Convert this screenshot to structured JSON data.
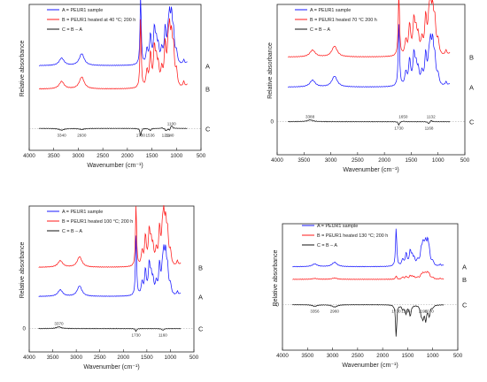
{
  "colors": {
    "sample": "#1a1aff",
    "heated": "#ff1a1a",
    "difference": "#111111"
  },
  "figure": {
    "xlabel": "Wavenumber (cm⁻¹)",
    "ylabel": "Relative absorbance",
    "zero_label": "0"
  },
  "chart_data": [
    {
      "type": "line",
      "xlim": [
        4000,
        500
      ],
      "xticks": [
        4000,
        3500,
        3000,
        2500,
        2000,
        1500,
        1000,
        500
      ],
      "legend": [
        "A = PEUR1 sample",
        "B = PEUR1 heated at 40 °C; 200 h",
        "C = B – A"
      ],
      "trace_labels": [
        "B",
        "A",
        "C"
      ],
      "zero_label": false,
      "series": [
        {
          "name": "A = PEUR1 sample",
          "label": "A",
          "baseline": 0.42,
          "scale": 0.82,
          "x": [
            3340,
            2930,
            1730,
            1600,
            1530,
            1450,
            1410,
            1370,
            1300,
            1230,
            1170,
            1140,
            1100,
            1060,
            1000,
            850,
            780
          ],
          "y": [
            0.1,
            0.16,
            0.95,
            0.2,
            0.38,
            0.45,
            0.25,
            0.2,
            0.18,
            0.45,
            0.3,
            0.5,
            0.55,
            0.35,
            0.15,
            0.06,
            0.04
          ]
        },
        {
          "name": "B = PEUR1 heated at 40 °C; 200 h",
          "label": "B",
          "baseline": 0.58,
          "scale": 0.82,
          "x": [
            3340,
            2930,
            1730,
            1600,
            1530,
            1450,
            1410,
            1370,
            1300,
            1230,
            1170,
            1140,
            1100,
            1060,
            1000,
            850,
            780
          ],
          "y": [
            0.1,
            0.16,
            0.95,
            0.22,
            0.45,
            0.5,
            0.3,
            0.24,
            0.22,
            0.55,
            0.42,
            0.6,
            0.55,
            0.45,
            0.2,
            0.08,
            0.05
          ]
        },
        {
          "name": "C = B – A",
          "label": "C",
          "baseline": 0.85,
          "scale": 0.82,
          "x": [
            3340,
            2930,
            1730,
            1536,
            1300,
            1211,
            1140,
            1100
          ],
          "y": [
            -0.025,
            -0.015,
            -0.12,
            -0.03,
            0.01,
            -0.035,
            -0.03,
            0.05
          ]
        }
      ],
      "annotations": [
        {
          "label": "3340",
          "x": 3340,
          "below": true
        },
        {
          "label": "2930",
          "x": 2930,
          "below": true
        },
        {
          "label": "1730",
          "x": 1730,
          "below": true
        },
        {
          "label": "1536",
          "x": 1536,
          "below": true
        },
        {
          "label": "1211",
          "x": 1211,
          "below": true
        },
        {
          "label": "1140",
          "x": 1140,
          "below": true
        },
        {
          "label": "1100",
          "x": 1100,
          "below": false
        }
      ]
    },
    {
      "type": "line",
      "xlim": [
        4000,
        500
      ],
      "xticks": [
        4000,
        3500,
        3000,
        2500,
        2000,
        1500,
        1000,
        500
      ],
      "legend": [
        "A = PEUR1 sample",
        "B = PEUR1 heated 70 °C 200 h",
        "C = B – A"
      ],
      "trace_labels": [
        "B",
        "A",
        "C"
      ],
      "zero_label": true,
      "series": [
        {
          "name": "A = PEUR1 sample",
          "label": "A",
          "baseline": 0.55,
          "scale": 0.72,
          "x": [
            3340,
            2930,
            1730,
            1600,
            1530,
            1450,
            1410,
            1370,
            1300,
            1230,
            1170,
            1140,
            1100,
            1060,
            1000,
            850,
            780
          ],
          "y": [
            0.1,
            0.16,
            0.95,
            0.2,
            0.38,
            0.45,
            0.25,
            0.2,
            0.18,
            0.45,
            0.3,
            0.5,
            0.55,
            0.35,
            0.15,
            0.06,
            0.04
          ]
        },
        {
          "name": "B = PEUR1 heated 70 °C 200 h",
          "label": "B",
          "baseline": 0.35,
          "scale": 0.72,
          "x": [
            3340,
            2930,
            1730,
            1600,
            1530,
            1450,
            1410,
            1370,
            1300,
            1230,
            1170,
            1140,
            1100,
            1060,
            1000,
            850,
            780
          ],
          "y": [
            0.1,
            0.16,
            0.95,
            0.22,
            0.45,
            0.5,
            0.3,
            0.24,
            0.22,
            0.55,
            0.42,
            0.6,
            0.55,
            0.45,
            0.2,
            0.08,
            0.05
          ]
        },
        {
          "name": "C = B – A",
          "label": "C",
          "baseline": 0.78,
          "scale": 0.72,
          "x": [
            3388,
            2930,
            1730,
            1650,
            1168,
            1132
          ],
          "y": [
            0.03,
            0.0,
            -0.06,
            0.01,
            -0.04,
            0.03
          ]
        }
      ],
      "annotations": [
        {
          "label": "3388",
          "x": 3388,
          "below": false
        },
        {
          "label": "1730",
          "x": 1730,
          "below": true
        },
        {
          "label": "1650",
          "x": 1650,
          "below": false
        },
        {
          "label": "1168",
          "x": 1168,
          "below": true
        },
        {
          "label": "1132",
          "x": 1132,
          "below": false
        }
      ]
    },
    {
      "type": "line",
      "xlim": [
        4000,
        500
      ],
      "xticks": [
        4000,
        3500,
        3000,
        2500,
        2000,
        1500,
        1000,
        500
      ],
      "legend": [
        "A = PEUR1 sample",
        "B = PEUR1 heated 100 °C; 200 h",
        "C = B – A"
      ],
      "trace_labels": [
        "B",
        "A",
        "C"
      ],
      "zero_label": true,
      "series": [
        {
          "name": "A = PEUR1 sample",
          "label": "A",
          "baseline": 0.62,
          "scale": 0.72,
          "x": [
            3340,
            2930,
            1730,
            1600,
            1530,
            1450,
            1410,
            1370,
            1300,
            1230,
            1170,
            1140,
            1100,
            1060,
            1000,
            850,
            780
          ],
          "y": [
            0.1,
            0.16,
            0.95,
            0.2,
            0.38,
            0.45,
            0.25,
            0.2,
            0.18,
            0.45,
            0.3,
            0.5,
            0.55,
            0.35,
            0.15,
            0.06,
            0.04
          ]
        },
        {
          "name": "B = PEUR1 heated 100 °C; 200 h",
          "label": "B",
          "baseline": 0.42,
          "scale": 0.72,
          "x": [
            3340,
            2930,
            1730,
            1600,
            1530,
            1450,
            1410,
            1370,
            1300,
            1230,
            1170,
            1140,
            1100,
            1060,
            1000,
            850,
            780
          ],
          "y": [
            0.1,
            0.16,
            0.95,
            0.22,
            0.45,
            0.5,
            0.3,
            0.24,
            0.22,
            0.55,
            0.42,
            0.6,
            0.55,
            0.45,
            0.2,
            0.08,
            0.05
          ]
        },
        {
          "name": "C = B – A",
          "label": "C",
          "baseline": 0.84,
          "scale": 0.72,
          "x": [
            3370,
            2930,
            1730,
            1160
          ],
          "y": [
            0.03,
            0.0,
            -0.05,
            -0.03
          ]
        }
      ],
      "annotations": [
        {
          "label": "3370",
          "x": 3370,
          "below": false
        },
        {
          "label": "1730",
          "x": 1730,
          "below": true
        },
        {
          "label": "1160",
          "x": 1160,
          "below": true
        }
      ]
    },
    {
      "type": "line",
      "xlim": [
        4000,
        500
      ],
      "xticks": [
        4000,
        3500,
        3000,
        2500,
        2000,
        1500,
        1000,
        500
      ],
      "legend": [
        "A = PEUR1 sample",
        "B = PEUR1 heated 130 °C; 200 h",
        "C = B – A"
      ],
      "trace_labels": [
        "B",
        "A",
        "C"
      ],
      "zero_label": true,
      "series": [
        {
          "name": "A = PEUR1 sample",
          "label": "A",
          "baseline": 0.34,
          "scale": 0.55,
          "x": [
            3356,
            2960,
            1730,
            1600,
            1530,
            1450,
            1410,
            1370,
            1300,
            1230,
            1196,
            1170,
            1140,
            1100,
            1070,
            1000,
            850,
            780
          ],
          "y": [
            0.06,
            0.1,
            0.9,
            0.15,
            0.28,
            0.32,
            0.18,
            0.14,
            0.12,
            0.3,
            0.35,
            0.22,
            0.4,
            0.45,
            0.25,
            0.1,
            0.04,
            0.03
          ]
        },
        {
          "name": "B = PEUR1 heated 130 °C; 200 h",
          "label": "B",
          "baseline": 0.44,
          "scale": 0.55,
          "x": [
            3356,
            2960,
            1730,
            1600,
            1530,
            1450,
            1410,
            1370,
            1300,
            1230,
            1196,
            1170,
            1140,
            1100,
            1070,
            1000,
            850,
            780
          ],
          "y": [
            0.02,
            0.03,
            0.08,
            0.05,
            0.06,
            0.07,
            0.05,
            0.04,
            0.04,
            0.08,
            0.09,
            0.06,
            0.1,
            0.12,
            0.08,
            0.04,
            0.02,
            0.01
          ]
        },
        {
          "name": "C = B – A",
          "label": "C",
          "baseline": 0.64,
          "scale": 0.55,
          "x": [
            3356,
            2960,
            1730,
            1600,
            1536,
            1450,
            1230,
            1196,
            1140,
            1070,
            1000
          ],
          "y": [
            -0.04,
            -0.06,
            -0.85,
            -0.1,
            -0.22,
            -0.28,
            -0.2,
            -0.3,
            -0.38,
            -0.28,
            -0.06
          ]
        }
      ],
      "annotations": [
        {
          "label": "3356",
          "x": 3356,
          "below": true
        },
        {
          "label": "2960",
          "x": 2960,
          "below": true
        },
        {
          "label": "1730",
          "x": 1730,
          "below": true
        },
        {
          "label": "1536",
          "x": 1536,
          "below": true
        },
        {
          "label": "1196",
          "x": 1196,
          "below": true
        },
        {
          "label": "1070",
          "x": 1070,
          "below": true
        }
      ]
    }
  ]
}
